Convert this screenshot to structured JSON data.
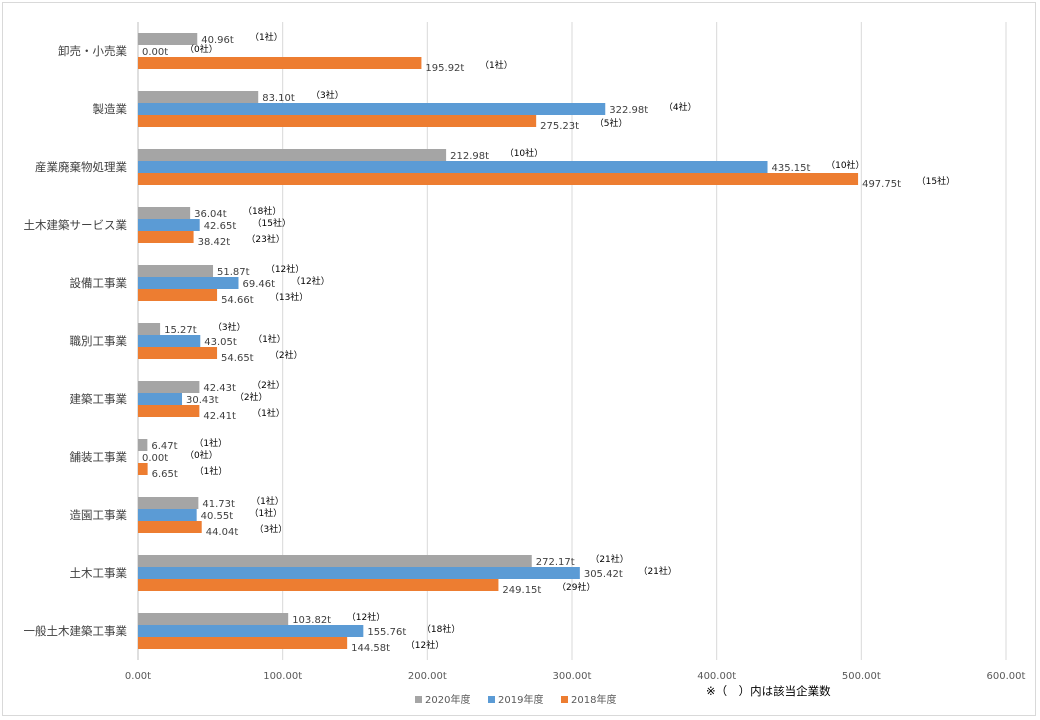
{
  "chart_data": {
    "type": "bar",
    "orientation": "horizontal",
    "title": "",
    "xlabel": "",
    "ylabel": "",
    "xlim": [
      0,
      600
    ],
    "x_ticks": [
      "0.00t",
      "100.00t",
      "200.00t",
      "300.00t",
      "400.00t",
      "500.00t",
      "600.00t"
    ],
    "grid": "vertical",
    "legend_position": "bottom",
    "categories": [
      "卸売・小売業",
      "製造業",
      "産業廃棄物処理業",
      "土木建築サービス業",
      "設備工事業",
      "職別工事業",
      "建築工事業",
      "舗装工事業",
      "造園工事業",
      "土木工事業",
      "一般土木建築工事業"
    ],
    "series": [
      {
        "name": "2020年度",
        "color": "#a5a5a5",
        "values": [
          40.96,
          83.1,
          212.98,
          36.04,
          51.87,
          15.27,
          42.43,
          6.47,
          41.73,
          272.17,
          103.82
        ],
        "value_labels": [
          "40.96t",
          "83.10t",
          "212.98t",
          "36.04t",
          "51.87t",
          "15.27t",
          "42.43t",
          "6.47t",
          "41.73t",
          "272.17t",
          "103.82t"
        ],
        "count_labels": [
          "（1社）",
          "（3社）",
          "（10社）",
          "（18社）",
          "（12社）",
          "（3社）",
          "（2社）",
          "（1社）",
          "（1社）",
          "（21社）",
          "（12社）"
        ]
      },
      {
        "name": "2019年度",
        "color": "#5b9bd5",
        "values": [
          0.0,
          322.98,
          435.15,
          42.65,
          69.46,
          43.05,
          30.43,
          0.0,
          40.55,
          305.42,
          155.76
        ],
        "value_labels": [
          "0.00t",
          "322.98t",
          "435.15t",
          "42.65t",
          "69.46t",
          "43.05t",
          "30.43t",
          "0.00t",
          "40.55t",
          "305.42t",
          "155.76t"
        ],
        "count_labels": [
          "（0社）",
          "（4社）",
          "（10社）",
          "（15社）",
          "（12社）",
          "（1社）",
          "（2社）",
          "（0社）",
          "（1社）",
          "（21社）",
          "（18社）"
        ]
      },
      {
        "name": "2018年度",
        "color": "#ed7d31",
        "values": [
          195.92,
          275.23,
          497.75,
          38.42,
          54.66,
          54.65,
          42.41,
          6.65,
          44.04,
          249.15,
          144.58
        ],
        "value_labels": [
          "195.92t",
          "275.23t",
          "497.75t",
          "38.42t",
          "54.66t",
          "54.65t",
          "42.41t",
          "6.65t",
          "44.04t",
          "249.15t",
          "144.58t"
        ],
        "count_labels": [
          "（1社）",
          "（5社）",
          "（15社）",
          "（23社）",
          "（13社）",
          "（2社）",
          "（1社）",
          "（1社）",
          "（3社）",
          "（29社）",
          "（12社）"
        ]
      }
    ],
    "annotation": "※（　）内は該当企業数"
  }
}
